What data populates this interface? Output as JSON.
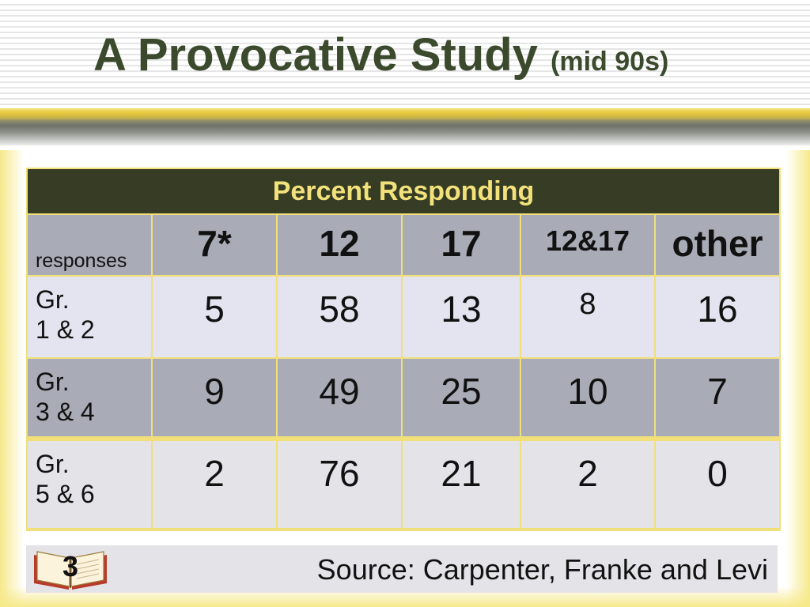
{
  "title": {
    "main": "A Provocative Study",
    "sub": "(mid 90s)"
  },
  "table": {
    "caption": "Percent Responding",
    "header": [
      "responses",
      "7*",
      "12",
      "17",
      "12&17",
      "other"
    ],
    "rows": [
      {
        "label_line1": "Gr.",
        "label_line2": "1 & 2",
        "values": [
          "5",
          "58",
          "13",
          "8",
          "16"
        ]
      },
      {
        "label_line1": "Gr.",
        "label_line2": "3 & 4",
        "values": [
          "9",
          "49",
          "25",
          "10",
          "7"
        ]
      },
      {
        "label_line1": "Gr.",
        "label_line2": "5 & 6",
        "values": [
          "2",
          "76",
          "21",
          "2",
          "0"
        ]
      }
    ]
  },
  "footer": {
    "badge_number": "3",
    "source": "Source:  Carpenter, Franke and Levi",
    "icon": "open-book-icon"
  },
  "colors": {
    "title": "#3b4a2c",
    "caption_bg": "#363d24",
    "caption_text": "#f3e27c",
    "accent_yellow": "#f1df7a",
    "grey_row": "#a9abb6",
    "light_row": "#e3e4ef"
  }
}
